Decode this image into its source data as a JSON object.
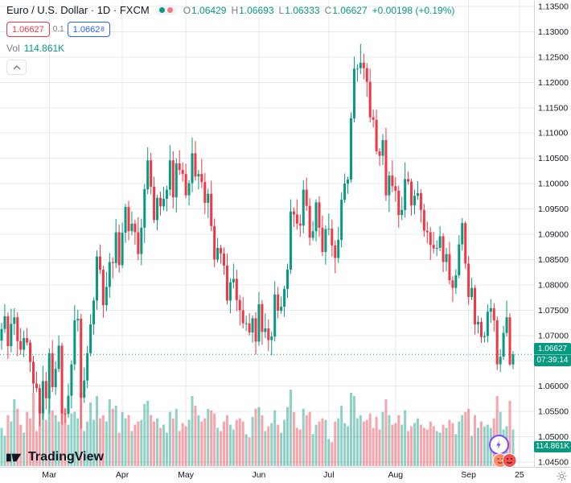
{
  "colors": {
    "up": "#089981",
    "down": "#f23645",
    "buy": "#2962ff",
    "sell": "#f23645",
    "muted": "#787b86",
    "axis_text": "#131722",
    "grid": "#e6e8eb",
    "border": "#d1d4dc",
    "vol_up": "rgba(8,153,129,0.45)",
    "vol_down": "rgba(242,54,69,0.45)",
    "accent_purple": "#7c4dff"
  },
  "legend": {
    "title": "Euro / U.S. Dollar · 1D · FXCM",
    "ohlc": {
      "o_label": "O",
      "o": "1.06429",
      "h_label": "H",
      "h": "1.06693",
      "l_label": "L",
      "l": "1.06333",
      "c_label": "C",
      "c": "1.06627",
      "change": "+0.00198 (+0.19%)"
    },
    "sell_price": "1.06627",
    "spread": "0.1",
    "buy_price_main": "1.0662",
    "buy_price_sup": "8",
    "vol_label": "Vol",
    "vol_value": "114.861K"
  },
  "last_price": {
    "value": 1.06627,
    "label": "1.06627",
    "countdown": "07:39:14"
  },
  "volume_axis_label": "114.861K",
  "watermark": "TradingView",
  "price_axis": {
    "min": 1.045,
    "max": 1.135,
    "labels": [
      "1.13500",
      "1.13000",
      "1.12500",
      "1.12000",
      "1.11500",
      "1.11000",
      "1.10500",
      "1.10000",
      "1.09500",
      "1.09000",
      "1.08500",
      "1.08000",
      "1.07500",
      "1.07000",
      "1.06500",
      "1.06000",
      "1.05500",
      "1.05000",
      "1.04500"
    ]
  },
  "time_axis": {
    "labels": [
      {
        "text": "Mar",
        "index": 15
      },
      {
        "text": "Apr",
        "index": 38
      },
      {
        "text": "May",
        "index": 58
      },
      {
        "text": "Jun",
        "index": 81
      },
      {
        "text": "Jul",
        "index": 103
      },
      {
        "text": "Aug",
        "index": 124
      },
      {
        "text": "Sep",
        "index": 147
      },
      {
        "text": "25",
        "index": 163
      }
    ]
  },
  "chart_data": {
    "type": "candlestick",
    "symbol": "EURUSD",
    "title": "Euro / U.S. Dollar",
    "interval": "1D",
    "exchange": "FXCM",
    "ylim": [
      1.045,
      1.135
    ],
    "grid": true,
    "volume_units": "K",
    "candle_format": [
      "open",
      "high",
      "low",
      "close",
      "volume_k"
    ],
    "candles": [
      [
        1.069,
        1.0725,
        1.0672,
        1.0713,
        120
      ],
      [
        1.0713,
        1.0762,
        1.0705,
        1.0738,
        95
      ],
      [
        1.0738,
        1.0746,
        1.0654,
        1.0679,
        160
      ],
      [
        1.0679,
        1.0753,
        1.0667,
        1.0723,
        140
      ],
      [
        1.0723,
        1.0754,
        1.0701,
        1.0736,
        210
      ],
      [
        1.0736,
        1.0746,
        1.0659,
        1.0689,
        180
      ],
      [
        1.0689,
        1.0715,
        1.0662,
        1.0672,
        130
      ],
      [
        1.0672,
        1.071,
        1.0657,
        1.0695,
        105
      ],
      [
        1.0695,
        1.0715,
        1.068,
        1.0686,
        170
      ],
      [
        1.0686,
        1.0692,
        1.0628,
        1.0648,
        150
      ],
      [
        1.0648,
        1.066,
        1.0587,
        1.0605,
        230
      ],
      [
        1.0605,
        1.0629,
        1.0588,
        1.0596,
        110
      ],
      [
        1.0596,
        1.0604,
        1.0521,
        1.0546,
        190
      ],
      [
        1.0546,
        1.064,
        1.0534,
        1.061,
        200
      ],
      [
        1.061,
        1.0628,
        1.0554,
        1.0576,
        145
      ],
      [
        1.0576,
        1.0675,
        1.0546,
        1.0665,
        220
      ],
      [
        1.0665,
        1.0691,
        1.0588,
        1.0598,
        175
      ],
      [
        1.0598,
        1.0649,
        1.0583,
        1.0634,
        160
      ],
      [
        1.0634,
        1.07,
        1.0628,
        1.068,
        140
      ],
      [
        1.068,
        1.0686,
        1.0524,
        1.0546,
        240
      ],
      [
        1.0546,
        1.0557,
        1.0527,
        1.0545,
        180
      ],
      [
        1.0545,
        1.0605,
        1.0537,
        1.0581,
        130
      ],
      [
        1.0581,
        1.0651,
        1.0556,
        1.0643,
        165
      ],
      [
        1.0643,
        1.076,
        1.0631,
        1.073,
        170
      ],
      [
        1.073,
        1.0751,
        1.0708,
        1.0733,
        150
      ],
      [
        1.0733,
        1.0743,
        1.0516,
        1.0577,
        230
      ],
      [
        1.0577,
        1.0637,
        1.0567,
        1.0611,
        110
      ],
      [
        1.0611,
        1.068,
        1.0596,
        1.0665,
        140
      ],
      [
        1.0665,
        1.0742,
        1.0659,
        1.0722,
        200
      ],
      [
        1.0722,
        1.0775,
        1.0702,
        1.0769,
        145
      ],
      [
        1.0769,
        1.0868,
        1.0751,
        1.0856,
        220
      ],
      [
        1.0856,
        1.088,
        1.0822,
        1.083,
        150
      ],
      [
        1.083,
        1.0838,
        1.0735,
        1.076,
        160
      ],
      [
        1.076,
        1.0826,
        1.0748,
        1.0796,
        140
      ],
      [
        1.0796,
        1.0863,
        1.0774,
        1.0845,
        210
      ],
      [
        1.0845,
        1.0855,
        1.0813,
        1.0843,
        180
      ],
      [
        1.0843,
        1.093,
        1.0833,
        1.0904,
        190
      ],
      [
        1.0904,
        1.0919,
        1.0824,
        1.0839,
        105
      ],
      [
        1.0839,
        1.0923,
        1.0833,
        1.0903,
        170
      ],
      [
        1.0903,
        1.096,
        1.0883,
        1.0954,
        150
      ],
      [
        1.0954,
        1.0966,
        1.0888,
        1.0906,
        160
      ],
      [
        1.0906,
        1.0945,
        1.0898,
        1.0921,
        110
      ],
      [
        1.0921,
        1.0929,
        1.0879,
        1.0904,
        130
      ],
      [
        1.0904,
        1.0934,
        1.0849,
        1.0861,
        140
      ],
      [
        1.0861,
        1.0931,
        1.0839,
        1.0913,
        145
      ],
      [
        1.0913,
        1.0999,
        1.0883,
        1.0989,
        195
      ],
      [
        1.0989,
        1.1072,
        1.0979,
        1.1046,
        205
      ],
      [
        1.1046,
        1.1061,
        1.0979,
        1.0994,
        160
      ],
      [
        1.0994,
        1.1014,
        1.0922,
        1.0928,
        140
      ],
      [
        1.0928,
        1.0978,
        1.0908,
        1.0972,
        150
      ],
      [
        1.0972,
        1.0984,
        1.0937,
        1.0955,
        120
      ],
      [
        1.0955,
        1.0994,
        1.0947,
        1.097,
        130
      ],
      [
        1.097,
        1.0996,
        1.0945,
        1.0988,
        105
      ],
      [
        1.0988,
        1.1076,
        1.0976,
        1.1046,
        170
      ],
      [
        1.1046,
        1.1064,
        1.0951,
        1.0973,
        150
      ],
      [
        1.0973,
        1.105,
        1.0943,
        1.104,
        180
      ],
      [
        1.104,
        1.1066,
        1.1017,
        1.1027,
        110
      ],
      [
        1.1027,
        1.1042,
        1.1004,
        1.1019,
        135
      ],
      [
        1.1019,
        1.1039,
        1.0971,
        1.0977,
        125
      ],
      [
        1.0977,
        1.1007,
        1.0957,
        1.1001,
        145
      ],
      [
        1.1001,
        1.1091,
        1.0983,
        1.106,
        220
      ],
      [
        1.106,
        1.1084,
        1.1006,
        1.1014,
        190
      ],
      [
        1.1014,
        1.1027,
        1.0989,
        1.1019,
        160
      ],
      [
        1.1019,
        1.1049,
        1.0991,
        1.1003,
        140
      ],
      [
        1.1003,
        1.1021,
        1.094,
        1.0962,
        150
      ],
      [
        1.0962,
        1.099,
        1.0932,
        1.098,
        180
      ],
      [
        1.098,
        1.1006,
        1.0906,
        1.0916,
        175
      ],
      [
        1.0916,
        1.0931,
        1.0835,
        1.085,
        165
      ],
      [
        1.085,
        1.0893,
        1.0844,
        1.0873,
        120
      ],
      [
        1.0873,
        1.0879,
        1.0842,
        1.0862,
        110
      ],
      [
        1.0862,
        1.0874,
        1.082,
        1.0838,
        140
      ],
      [
        1.0838,
        1.0862,
        1.0761,
        1.0769,
        160
      ],
      [
        1.0769,
        1.0813,
        1.0744,
        1.0805,
        130
      ],
      [
        1.0805,
        1.0842,
        1.0793,
        1.0812,
        115
      ],
      [
        1.0812,
        1.083,
        1.0748,
        1.077,
        145
      ],
      [
        1.077,
        1.078,
        1.072,
        1.075,
        150
      ],
      [
        1.075,
        1.0776,
        1.0714,
        1.0724,
        140
      ],
      [
        1.0724,
        1.0739,
        1.0709,
        1.0724,
        100
      ],
      [
        1.0724,
        1.0744,
        1.07,
        1.0706,
        90
      ],
      [
        1.0706,
        1.074,
        1.0686,
        1.0734,
        155
      ],
      [
        1.0734,
        1.0746,
        1.0662,
        1.0688,
        180
      ],
      [
        1.0688,
        1.0786,
        1.068,
        1.0762,
        185
      ],
      [
        1.0762,
        1.077,
        1.0682,
        1.0707,
        160
      ],
      [
        1.0707,
        1.0744,
        1.0695,
        1.0714,
        110
      ],
      [
        1.0714,
        1.0732,
        1.0669,
        1.0691,
        125
      ],
      [
        1.0691,
        1.0708,
        1.0661,
        1.0698,
        135
      ],
      [
        1.0698,
        1.0807,
        1.0688,
        1.0781,
        175
      ],
      [
        1.0781,
        1.0796,
        1.0734,
        1.0749,
        130
      ],
      [
        1.0749,
        1.0777,
        1.0743,
        1.0757,
        105
      ],
      [
        1.0757,
        1.0798,
        1.0737,
        1.0792,
        145
      ],
      [
        1.0792,
        1.0842,
        1.0774,
        1.083,
        185
      ],
      [
        1.083,
        1.0969,
        1.0822,
        1.0945,
        240
      ],
      [
        1.0945,
        1.0953,
        1.0914,
        1.0939,
        170
      ],
      [
        1.0939,
        1.0969,
        1.0909,
        1.0921,
        120
      ],
      [
        1.0921,
        1.0939,
        1.0895,
        1.0917,
        115
      ],
      [
        1.0917,
        1.1007,
        1.0902,
        1.0988,
        180
      ],
      [
        1.0988,
        1.1012,
        1.0946,
        1.0956,
        160
      ],
      [
        1.0956,
        1.0971,
        1.0878,
        1.0893,
        170
      ],
      [
        1.0893,
        1.0926,
        1.0887,
        1.0906,
        100
      ],
      [
        1.0906,
        1.0969,
        1.0886,
        1.0963,
        130
      ],
      [
        1.0963,
        1.0975,
        1.0895,
        1.0913,
        140
      ],
      [
        1.0913,
        1.0937,
        1.0857,
        1.0865,
        150
      ],
      [
        1.0865,
        1.0918,
        1.084,
        1.091,
        145
      ],
      [
        1.091,
        1.0941,
        1.0898,
        1.0911,
        85
      ],
      [
        1.0911,
        1.0929,
        1.0856,
        1.0878,
        75
      ],
      [
        1.0878,
        1.0888,
        1.0823,
        1.0853,
        140
      ],
      [
        1.0853,
        1.0915,
        1.0843,
        1.0889,
        150
      ],
      [
        1.0889,
        1.0983,
        1.0874,
        1.0968,
        190
      ],
      [
        1.0968,
        1.102,
        1.0962,
        1.1,
        135
      ],
      [
        1.1,
        1.1014,
        1.098,
        1.1008,
        125
      ],
      [
        1.1008,
        1.1141,
        1.1002,
        1.1129,
        230
      ],
      [
        1.1129,
        1.1251,
        1.1121,
        1.1227,
        220
      ],
      [
        1.1227,
        1.1236,
        1.1202,
        1.1228,
        150
      ],
      [
        1.1228,
        1.1276,
        1.1216,
        1.1239,
        160
      ],
      [
        1.1239,
        1.1257,
        1.1206,
        1.1228,
        140
      ],
      [
        1.1228,
        1.1238,
        1.1171,
        1.1201,
        145
      ],
      [
        1.1201,
        1.1227,
        1.1121,
        1.1131,
        165
      ],
      [
        1.1131,
        1.1146,
        1.1111,
        1.1126,
        120
      ],
      [
        1.1126,
        1.1146,
        1.1058,
        1.1064,
        155
      ],
      [
        1.1064,
        1.107,
        1.1035,
        1.1055,
        115
      ],
      [
        1.1055,
        1.1098,
        1.1037,
        1.1086,
        170
      ],
      [
        1.1086,
        1.111,
        1.0966,
        1.0977,
        210
      ],
      [
        1.0977,
        1.1024,
        1.0944,
        1.1016,
        160
      ],
      [
        1.1016,
        1.1046,
        1.0983,
        1.0995,
        130
      ],
      [
        1.0995,
        1.1013,
        1.0964,
        1.0986,
        135
      ],
      [
        1.0986,
        1.0996,
        1.0913,
        1.0938,
        160
      ],
      [
        1.0938,
        1.0974,
        1.0928,
        1.0948,
        130
      ],
      [
        1.0948,
        1.1042,
        1.0933,
        1.1009,
        175
      ],
      [
        1.1009,
        1.1024,
        1.0998,
        1.1004,
        110
      ],
      [
        1.1004,
        1.101,
        1.0937,
        1.0957,
        125
      ],
      [
        1.0957,
        1.0988,
        1.0939,
        1.0976,
        135
      ],
      [
        1.0976,
        1.1005,
        1.0968,
        1.0981,
        150
      ],
      [
        1.0981,
        1.0989,
        1.0923,
        1.0948,
        130
      ],
      [
        1.0948,
        1.096,
        1.0895,
        1.0907,
        120
      ],
      [
        1.0907,
        1.0925,
        1.0882,
        1.0904,
        115
      ],
      [
        1.0904,
        1.0914,
        1.0849,
        1.0879,
        140
      ],
      [
        1.0879,
        1.0905,
        1.0862,
        1.0872,
        125
      ],
      [
        1.0872,
        1.0888,
        1.0857,
        1.0873,
        110
      ],
      [
        1.0873,
        1.0916,
        1.0867,
        1.0896,
        105
      ],
      [
        1.0896,
        1.0902,
        1.0825,
        1.0845,
        130
      ],
      [
        1.0845,
        1.0873,
        1.0827,
        1.0861,
        120
      ],
      [
        1.0861,
        1.0885,
        1.0801,
        1.0809,
        145
      ],
      [
        1.0809,
        1.0817,
        1.0766,
        1.0794,
        135
      ],
      [
        1.0794,
        1.0831,
        1.0782,
        1.0819,
        100
      ],
      [
        1.0819,
        1.0898,
        1.0813,
        1.088,
        140
      ],
      [
        1.088,
        1.0932,
        1.0868,
        1.0922,
        160
      ],
      [
        1.0922,
        1.0926,
        1.0832,
        1.0842,
        170
      ],
      [
        1.0842,
        1.0857,
        1.0761,
        1.0776,
        180
      ],
      [
        1.0776,
        1.0814,
        1.077,
        1.0794,
        95
      ],
      [
        1.0794,
        1.08,
        1.0702,
        1.0722,
        160
      ],
      [
        1.0722,
        1.0739,
        1.0704,
        1.0727,
        120
      ],
      [
        1.0727,
        1.0735,
        1.0685,
        1.0697,
        140
      ],
      [
        1.0697,
        1.0707,
        1.0686,
        1.0699,
        125
      ],
      [
        1.0699,
        1.0762,
        1.0687,
        1.0747,
        130
      ],
      [
        1.0747,
        1.0772,
        1.0725,
        1.0754,
        120
      ],
      [
        1.0754,
        1.0764,
        1.0708,
        1.073,
        150
      ],
      [
        1.073,
        1.0738,
        1.0632,
        1.0643,
        220
      ],
      [
        1.0643,
        1.0673,
        1.0628,
        1.0658,
        170
      ],
      [
        1.0658,
        1.0719,
        1.0652,
        1.0705,
        115
      ],
      [
        1.0705,
        1.0769,
        1.0698,
        1.0736,
        125
      ],
      [
        1.0736,
        1.0744,
        1.064,
        1.06429,
        205
      ],
      [
        1.06429,
        1.06693,
        1.06333,
        1.06627,
        114.861
      ]
    ]
  }
}
